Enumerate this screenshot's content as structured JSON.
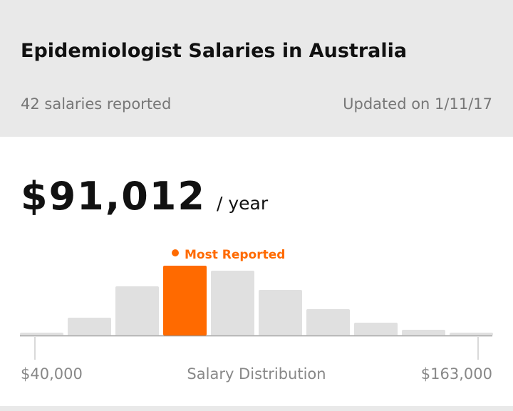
{
  "header": {
    "title": "Epidemiologist Salaries in Australia",
    "reported": "42 salaries reported",
    "updated": "Updated on 1/11/17"
  },
  "salary": {
    "amount": "$91,012",
    "period": "/ year"
  },
  "chart_data": {
    "type": "bar",
    "categories": [
      null,
      null,
      null,
      null,
      null,
      null,
      null,
      null,
      null,
      null
    ],
    "values": [
      4,
      25,
      69,
      98,
      91,
      64,
      37,
      18,
      8,
      4
    ],
    "color": "#e0e0e0",
    "highlight_index": 3,
    "highlight_color": "#ff6a00",
    "ylim": [
      0,
      100
    ],
    "annotation": "Most Reported",
    "min_label": "$40,000",
    "max_label": "$163,000",
    "xlabel": "Salary Distribution"
  }
}
